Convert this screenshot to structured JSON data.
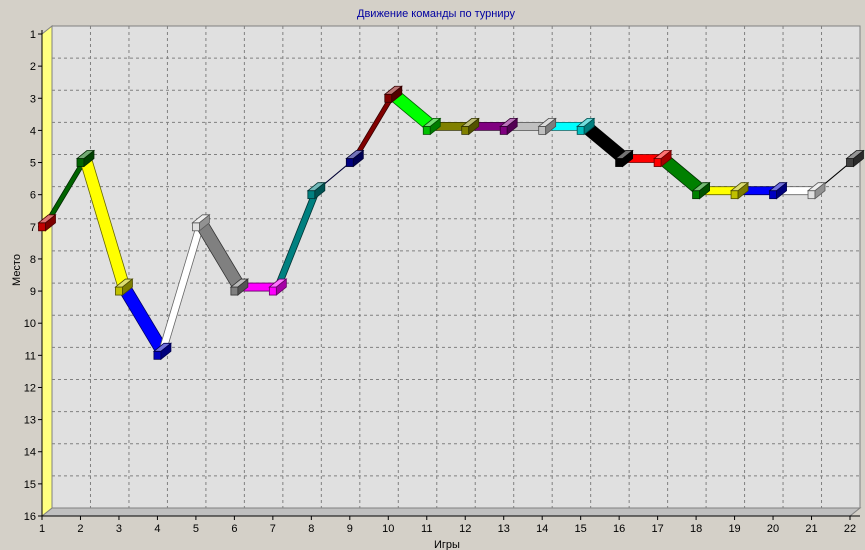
{
  "chart_data": {
    "type": "line",
    "title": "Движение команды по турниру",
    "xlabel": "Игры",
    "ylabel": "Место",
    "x": [
      1,
      2,
      3,
      4,
      5,
      6,
      7,
      8,
      9,
      10,
      11,
      12,
      13,
      14,
      15,
      16,
      17,
      18,
      19,
      20,
      21,
      22
    ],
    "y": [
      7,
      5,
      9,
      11,
      7,
      9,
      9,
      6,
      5,
      3,
      4,
      4,
      4,
      4,
      4,
      5,
      5,
      6,
      6,
      6,
      6,
      5
    ],
    "segment_colors": [
      "#006400",
      "#ffff00",
      "#0000ff",
      "#ffffff",
      "#808080",
      "#ff00ff",
      "#008080",
      "#000080",
      "#800000",
      "#00ff00",
      "#808000",
      "#800080",
      "#c0c0c0",
      "#00ffff",
      "#000000",
      "#ff0000",
      "#008000",
      "#ffff00",
      "#0000ff",
      "#ffffff",
      "#000000"
    ],
    "marker_colors": [
      "#c00000",
      "#006400",
      "#c0c000",
      "#0000c0",
      "#e0e0e0",
      "#808080",
      "#ff00ff",
      "#008080",
      "#000080",
      "#800000",
      "#00c000",
      "#808000",
      "#800080",
      "#c0c0c0",
      "#00c0c0",
      "#000000",
      "#ff0000",
      "#008000",
      "#c0c000",
      "#0000c0",
      "#e0e0e0",
      "#404040"
    ],
    "xlim": [
      1,
      22
    ],
    "ylim": [
      1,
      16
    ],
    "y_inverted": true,
    "x_ticks": [
      "1",
      "2",
      "3",
      "4",
      "5",
      "6",
      "7",
      "8",
      "9",
      "10",
      "11",
      "12",
      "13",
      "14",
      "15",
      "16",
      "17",
      "18",
      "19",
      "20",
      "21",
      "22"
    ],
    "y_ticks": [
      "1",
      "2",
      "3",
      "4",
      "5",
      "6",
      "7",
      "8",
      "9",
      "10",
      "11",
      "12",
      "13",
      "14",
      "15",
      "16"
    ],
    "grid": true,
    "style": "3d",
    "colors": {
      "background": "#d4d0c8",
      "plot_back": "#e0e0e0",
      "left_wall": "#ffff80",
      "grid": "#808080",
      "title": "#0000a0"
    }
  }
}
